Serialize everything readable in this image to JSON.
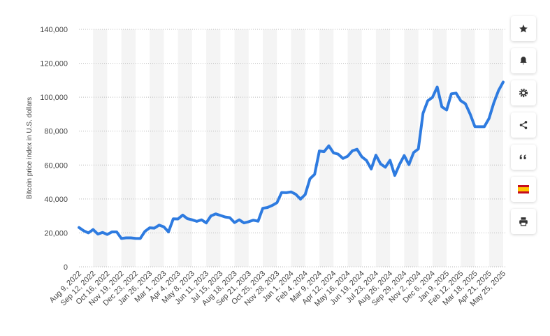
{
  "chart_data": {
    "type": "line",
    "y_label": "Bitcoin price index in U.S. dollars",
    "color": "#2e7be0",
    "categories": [
      "Aug 9, 2022",
      null,
      null,
      "Sep 12, 2022",
      null,
      null,
      "Oct 16, 2022",
      null,
      null,
      "Nov 19, 2022",
      null,
      null,
      "Dec 23, 2022",
      null,
      null,
      "Jan 26, 2023",
      null,
      null,
      "Mar 1, 2023",
      null,
      null,
      "Apr 4, 2023",
      null,
      null,
      "May 8, 2023",
      null,
      null,
      "Jun 11, 2023",
      null,
      null,
      "Jul 15, 2023",
      null,
      null,
      "Aug 18, 2023",
      null,
      null,
      "Sep 21, 2023",
      null,
      null,
      "Oct 25, 2023",
      null,
      null,
      "Nov 28, 2023",
      null,
      null,
      "Jan 1, 2024",
      null,
      null,
      "Feb 4, 2024",
      null,
      null,
      "Mar 9, 2024",
      null,
      null,
      "Apr 12, 2024",
      null,
      null,
      "May 16, 2024",
      null,
      null,
      "Jun 19, 2024",
      null,
      null,
      "Jul 23, 2024",
      null,
      null,
      "Aug 26, 2024",
      null,
      null,
      "Sep 29, 2024",
      null,
      null,
      "Nov 2, 2024",
      null,
      null,
      "Dec 6, 2024",
      null,
      null,
      "Jan 9, 2025",
      null,
      null,
      "Feb 12, 2025",
      null,
      null,
      "Mar 18, 2025",
      null,
      null,
      "Apr 21, 2025",
      null,
      null,
      "May 25, 2025"
    ],
    "values": [
      23200,
      21300,
      20000,
      22000,
      19300,
      20300,
      19100,
      20600,
      20600,
      16700,
      17100,
      17100,
      16800,
      16700,
      20900,
      23000,
      22800,
      24600,
      23600,
      20600,
      28300,
      28200,
      30500,
      28400,
      27700,
      26800,
      27700,
      25900,
      30000,
      31200,
      30300,
      29400,
      29000,
      26100,
      27700,
      25900,
      26600,
      27500,
      26900,
      34500,
      35000,
      36200,
      37800,
      43800,
      43700,
      44200,
      42800,
      39900,
      42600,
      51900,
      54500,
      68300,
      67900,
      71300,
      67200,
      66400,
      63900,
      65200,
      68400,
      69300,
      64900,
      62700,
      57700,
      65800,
      60700,
      58700,
      62800,
      53900,
      60300,
      65600,
      60300,
      67400,
      69500,
      90500,
      97900,
      99900,
      106000,
      94300,
      92500,
      102000,
      102400,
      97900,
      96100,
      90000,
      82700,
      82600,
      82600,
      87500,
      96500,
      103900,
      108900
    ],
    "ylim": [
      0,
      140000
    ],
    "yticks": [
      0,
      {
        "value": 20000,
        "label": "20,000"
      },
      {
        "value": 40000,
        "label": "40,000"
      },
      {
        "value": 60000,
        "label": "60,000"
      },
      {
        "value": 80000,
        "label": "80,000"
      },
      {
        "value": 100000,
        "label": "100,000"
      },
      {
        "value": 120000,
        "label": "120,000"
      },
      {
        "value": 140000,
        "label": "140,000"
      }
    ],
    "grid": true
  }
}
